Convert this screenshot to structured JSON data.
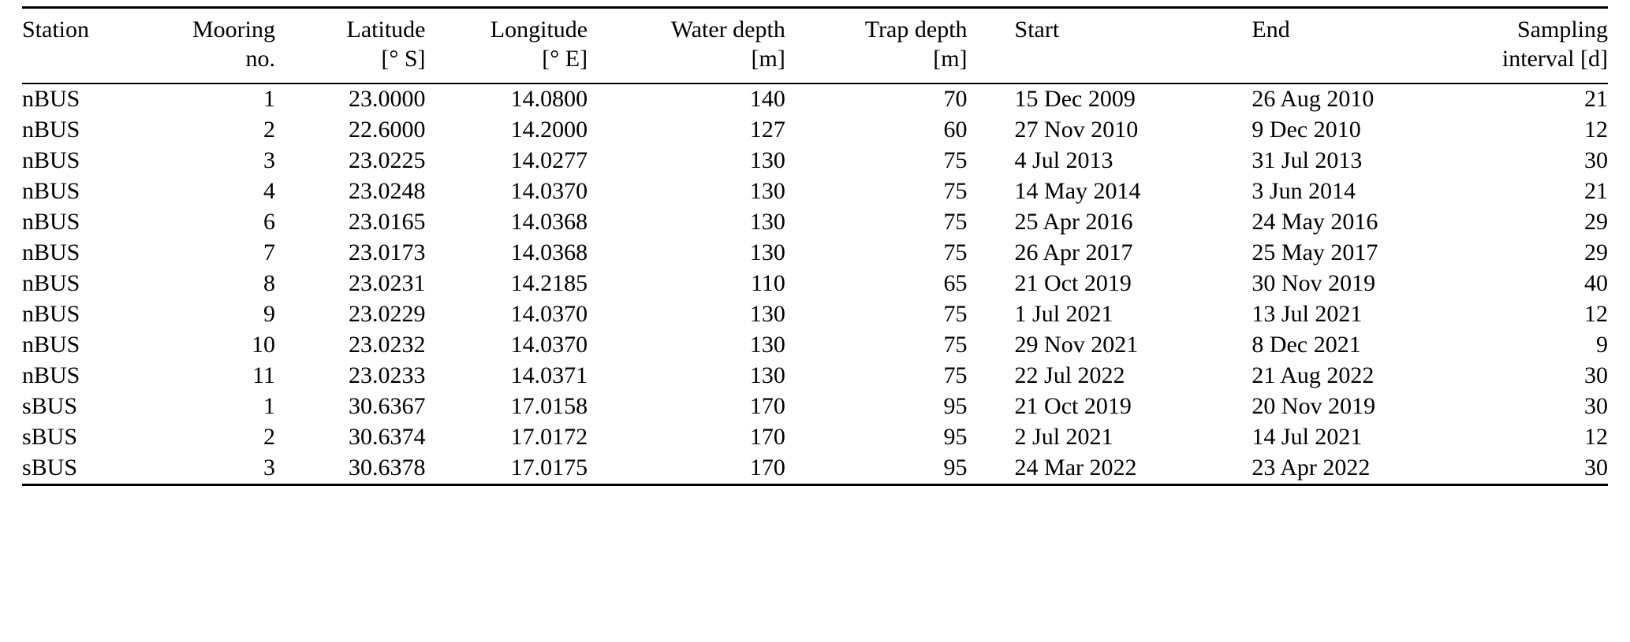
{
  "table": {
    "headers": [
      {
        "line1": "Station",
        "line2": ""
      },
      {
        "line1": "Mooring",
        "line2": "no."
      },
      {
        "line1": "Latitude",
        "line2": "[° S]"
      },
      {
        "line1": "Longitude",
        "line2": "[° E]"
      },
      {
        "line1": "Water depth",
        "line2": "[m]"
      },
      {
        "line1": "Trap depth",
        "line2": "[m]"
      },
      {
        "line1": "Start",
        "line2": ""
      },
      {
        "line1": "End",
        "line2": ""
      },
      {
        "line1": "Sampling",
        "line2": "interval [d]"
      }
    ],
    "rows": [
      [
        "nBUS",
        "1",
        "23.0000",
        "14.0800",
        "140",
        "70",
        "15 Dec 2009",
        "26 Aug 2010",
        "21"
      ],
      [
        "nBUS",
        "2",
        "22.6000",
        "14.2000",
        "127",
        "60",
        "27 Nov 2010",
        "9 Dec 2010",
        "12"
      ],
      [
        "nBUS",
        "3",
        "23.0225",
        "14.0277",
        "130",
        "75",
        "4 Jul 2013",
        "31 Jul 2013",
        "30"
      ],
      [
        "nBUS",
        "4",
        "23.0248",
        "14.0370",
        "130",
        "75",
        "14 May 2014",
        "3 Jun 2014",
        "21"
      ],
      [
        "nBUS",
        "6",
        "23.0165",
        "14.0368",
        "130",
        "75",
        "25 Apr 2016",
        "24 May 2016",
        "29"
      ],
      [
        "nBUS",
        "7",
        "23.0173",
        "14.0368",
        "130",
        "75",
        "26 Apr 2017",
        "25 May 2017",
        "29"
      ],
      [
        "nBUS",
        "8",
        "23.0231",
        "14.2185",
        "110",
        "65",
        "21 Oct 2019",
        "30 Nov 2019",
        "40"
      ],
      [
        "nBUS",
        "9",
        "23.0229",
        "14.0370",
        "130",
        "75",
        "1 Jul 2021",
        "13 Jul 2021",
        "12"
      ],
      [
        "nBUS",
        "10",
        "23.0232",
        "14.0370",
        "130",
        "75",
        "29 Nov 2021",
        "8 Dec 2021",
        "9"
      ],
      [
        "nBUS",
        "11",
        "23.0233",
        "14.0371",
        "130",
        "75",
        "22 Jul 2022",
        "21 Aug 2022",
        "30"
      ],
      [
        "sBUS",
        "1",
        "30.6367",
        "17.0158",
        "170",
        "95",
        "21 Oct 2019",
        "20 Nov 2019",
        "30"
      ],
      [
        "sBUS",
        "2",
        "30.6374",
        "17.0172",
        "170",
        "95",
        "2 Jul 2021",
        "14 Jul 2021",
        "12"
      ],
      [
        "sBUS",
        "3",
        "30.6378",
        "17.0175",
        "170",
        "95",
        "24 Mar 2022",
        "23 Apr 2022",
        "30"
      ]
    ]
  }
}
